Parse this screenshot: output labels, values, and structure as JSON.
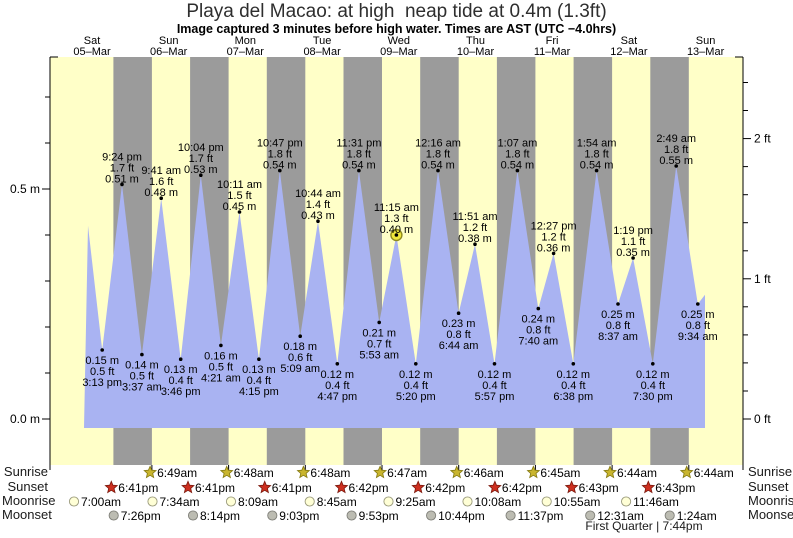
{
  "page": {
    "title": "Playa del Macao: at high  neap tide at 0.4m (1.3ft)",
    "subtitle": "Image captured 3 minutes before high water. Times are AST (UTC −4.0hrs)"
  },
  "chart_data": {
    "type": "area",
    "title": "Playa del Macao: at high  neap tide at 0.4m (1.3ft)",
    "subtitle": "Image captured 3 minutes before high water. Times are AST (UTC −4.0hrs)",
    "timezone_note": "Times are AST (UTC −4.0hrs)",
    "ylabel_left_unit": "m",
    "ylabel_right_unit": "ft",
    "ylim_meters": [
      -0.1,
      0.79
    ],
    "grid": false,
    "y_axis": {
      "left": [
        {
          "v": 0.5,
          "label": "0.5 m"
        },
        {
          "v": 0.0,
          "label": "0.0 m"
        }
      ],
      "right": [
        {
          "v": 2,
          "label": "2 ft"
        },
        {
          "v": 1,
          "label": "1 ft"
        },
        {
          "v": 0,
          "label": "0 ft"
        }
      ]
    },
    "days": [
      {
        "dow": "Sat",
        "date": "05–Mar"
      },
      {
        "dow": "Sun",
        "date": "06–Mar"
      },
      {
        "dow": "Mon",
        "date": "07–Mar"
      },
      {
        "dow": "Tue",
        "date": "08–Mar"
      },
      {
        "dow": "Wed",
        "date": "09–Mar"
      },
      {
        "dow": "Thu",
        "date": "10–Mar"
      },
      {
        "dow": "Fri",
        "date": "11–Mar"
      },
      {
        "dow": "Sat",
        "date": "12–Mar"
      },
      {
        "dow": "Sun",
        "date": "13–Mar"
      }
    ],
    "tides": [
      {
        "d": 0,
        "kind": "low",
        "time": "3:13 pm",
        "ft": "0.5 ft",
        "m": 0.15,
        "m_label": "0.15 m"
      },
      {
        "d": 0,
        "kind": "high",
        "time": "9:24 pm",
        "ft": "1.7 ft",
        "m": 0.51,
        "m_label": "0.51 m"
      },
      {
        "d": 1,
        "kind": "low",
        "time": "3:37 am",
        "ft": "0.5 ft",
        "m": 0.14,
        "m_label": "0.14 m"
      },
      {
        "d": 1,
        "kind": "high",
        "time": "9:41 am",
        "ft": "1.6 ft",
        "m": 0.48,
        "m_label": "0.48 m"
      },
      {
        "d": 1,
        "kind": "low",
        "time": "3:46 pm",
        "ft": "0.4 ft",
        "m": 0.13,
        "m_label": "0.13 m"
      },
      {
        "d": 1,
        "kind": "high",
        "time": "10:04 pm",
        "ft": "1.7 ft",
        "m": 0.53,
        "m_label": "0.53 m"
      },
      {
        "d": 2,
        "kind": "low",
        "time": "4:21 am",
        "ft": "0.5 ft",
        "m": 0.16,
        "m_label": "0.16 m"
      },
      {
        "d": 2,
        "kind": "high",
        "time": "10:11 am",
        "ft": "1.5 ft",
        "m": 0.45,
        "m_label": "0.45 m"
      },
      {
        "d": 2,
        "kind": "low",
        "time": "4:15 pm",
        "ft": "0.4 ft",
        "m": 0.13,
        "m_label": "0.13 m"
      },
      {
        "d": 2,
        "kind": "high",
        "time": "10:47 pm",
        "ft": "1.8 ft",
        "m": 0.54,
        "m_label": "0.54 m"
      },
      {
        "d": 3,
        "kind": "low",
        "time": "5:09 am",
        "ft": "0.6 ft",
        "m": 0.18,
        "m_label": "0.18 m"
      },
      {
        "d": 3,
        "kind": "high",
        "time": "10:44 am",
        "ft": "1.4 ft",
        "m": 0.43,
        "m_label": "0.43 m"
      },
      {
        "d": 3,
        "kind": "low",
        "time": "4:47 pm",
        "ft": "0.4 ft",
        "m": 0.12,
        "m_label": "0.12 m"
      },
      {
        "d": 3,
        "kind": "high",
        "time": "11:31 pm",
        "ft": "1.8 ft",
        "m": 0.54,
        "m_label": "0.54 m"
      },
      {
        "d": 4,
        "kind": "low",
        "time": "5:53 am",
        "ft": "0.7 ft",
        "m": 0.21,
        "m_label": "0.21 m"
      },
      {
        "d": 4,
        "kind": "high",
        "time": "11:15 am",
        "ft": "1.3 ft",
        "m": 0.4,
        "m_label": "0.40 m",
        "current": true
      },
      {
        "d": 4,
        "kind": "low",
        "time": "5:20 pm",
        "ft": "0.4 ft",
        "m": 0.12,
        "m_label": "0.12 m"
      },
      {
        "d": 5,
        "kind": "high",
        "time": "12:16 am",
        "ft": "1.8 ft",
        "m": 0.54,
        "m_label": "0.54 m"
      },
      {
        "d": 5,
        "kind": "low",
        "time": "6:44 am",
        "ft": "0.8 ft",
        "m": 0.23,
        "m_label": "0.23 m"
      },
      {
        "d": 5,
        "kind": "high",
        "time": "11:51 am",
        "ft": "1.2 ft",
        "m": 0.38,
        "m_label": "0.38 m"
      },
      {
        "d": 5,
        "kind": "low",
        "time": "5:57 pm",
        "ft": "0.4 ft",
        "m": 0.12,
        "m_label": "0.12 m"
      },
      {
        "d": 6,
        "kind": "high",
        "time": "1:07 am",
        "ft": "1.8 ft",
        "m": 0.54,
        "m_label": "0.54 m"
      },
      {
        "d": 6,
        "kind": "low",
        "time": "7:40 am",
        "ft": "0.8 ft",
        "m": 0.24,
        "m_label": "0.24 m"
      },
      {
        "d": 6,
        "kind": "high",
        "time": "12:27 pm",
        "ft": "1.2 ft",
        "m": 0.36,
        "m_label": "0.36 m"
      },
      {
        "d": 6,
        "kind": "low",
        "time": "6:38 pm",
        "ft": "0.4 ft",
        "m": 0.12,
        "m_label": "0.12 m"
      },
      {
        "d": 7,
        "kind": "high",
        "time": "1:54 am",
        "ft": "1.8 ft",
        "m": 0.54,
        "m_label": "0.54 m"
      },
      {
        "d": 7,
        "kind": "low",
        "time": "8:37 am",
        "ft": "0.8 ft",
        "m": 0.25,
        "m_label": "0.25 m"
      },
      {
        "d": 7,
        "kind": "high",
        "time": "1:19 pm",
        "ft": "1.1 ft",
        "m": 0.35,
        "m_label": "0.35 m"
      },
      {
        "d": 7,
        "kind": "low",
        "time": "7:30 pm",
        "ft": "0.4 ft",
        "m": 0.12,
        "m_label": "0.12 m"
      },
      {
        "d": 8,
        "kind": "high",
        "time": "2:49 am",
        "ft": "1.8 ft",
        "m": 0.55,
        "m_label": "0.55 m"
      },
      {
        "d": 8,
        "kind": "low",
        "time": "9:34 am",
        "ft": "0.8 ft",
        "m": 0.25,
        "m_label": "0.25 m"
      }
    ],
    "astro": {
      "row_labels": [
        "Sunrise",
        "Sunset",
        "Moonrise",
        "Moonset"
      ],
      "sunrise": [
        {
          "d": 1,
          "time": "6:49am"
        },
        {
          "d": 2,
          "time": "6:48am"
        },
        {
          "d": 3,
          "time": "6:48am"
        },
        {
          "d": 4,
          "time": "6:47am"
        },
        {
          "d": 5,
          "time": "6:46am"
        },
        {
          "d": 6,
          "time": "6:45am"
        },
        {
          "d": 7,
          "time": "6:44am"
        },
        {
          "d": 8,
          "time": "6:44am"
        }
      ],
      "sunset": [
        {
          "d": 0,
          "time": "6:41pm"
        },
        {
          "d": 1,
          "time": "6:41pm"
        },
        {
          "d": 2,
          "time": "6:41pm"
        },
        {
          "d": 3,
          "time": "6:42pm"
        },
        {
          "d": 4,
          "time": "6:42pm"
        },
        {
          "d": 5,
          "time": "6:42pm"
        },
        {
          "d": 6,
          "time": "6:43pm"
        },
        {
          "d": 7,
          "time": "6:43pm"
        }
      ],
      "moonrise": [
        {
          "d": 0,
          "time": "7:00am"
        },
        {
          "d": 1,
          "time": "7:34am"
        },
        {
          "d": 2,
          "time": "8:09am"
        },
        {
          "d": 3,
          "time": "8:45am"
        },
        {
          "d": 4,
          "time": "9:25am"
        },
        {
          "d": 5,
          "time": "10:08am"
        },
        {
          "d": 6,
          "time": "10:55am"
        },
        {
          "d": 7,
          "time": "11:46am"
        }
      ],
      "moonset": [
        {
          "d": 0,
          "time": "7:26pm"
        },
        {
          "d": 1,
          "time": "8:14pm"
        },
        {
          "d": 2,
          "time": "9:03pm"
        },
        {
          "d": 3,
          "time": "9:53pm"
        },
        {
          "d": 4,
          "time": "10:44pm"
        },
        {
          "d": 5,
          "time": "11:37pm"
        },
        {
          "d": 7,
          "time": "12:31am"
        },
        {
          "d": 8,
          "time": "1:24am"
        }
      ],
      "footer": "First Quarter | 7:44pm"
    },
    "colors": {
      "day_band": "#ffffc8",
      "night_band": "#9b9b9b",
      "water": "#a9b3f2",
      "day_label": "#e04038",
      "sunrise_icon": "#c9b52e",
      "sunset_icon": "#cd2f1f",
      "moonrise_icon": "#ffffd6",
      "moonset_icon": "#bcbcb2",
      "current_marker": "#efe73c"
    }
  }
}
